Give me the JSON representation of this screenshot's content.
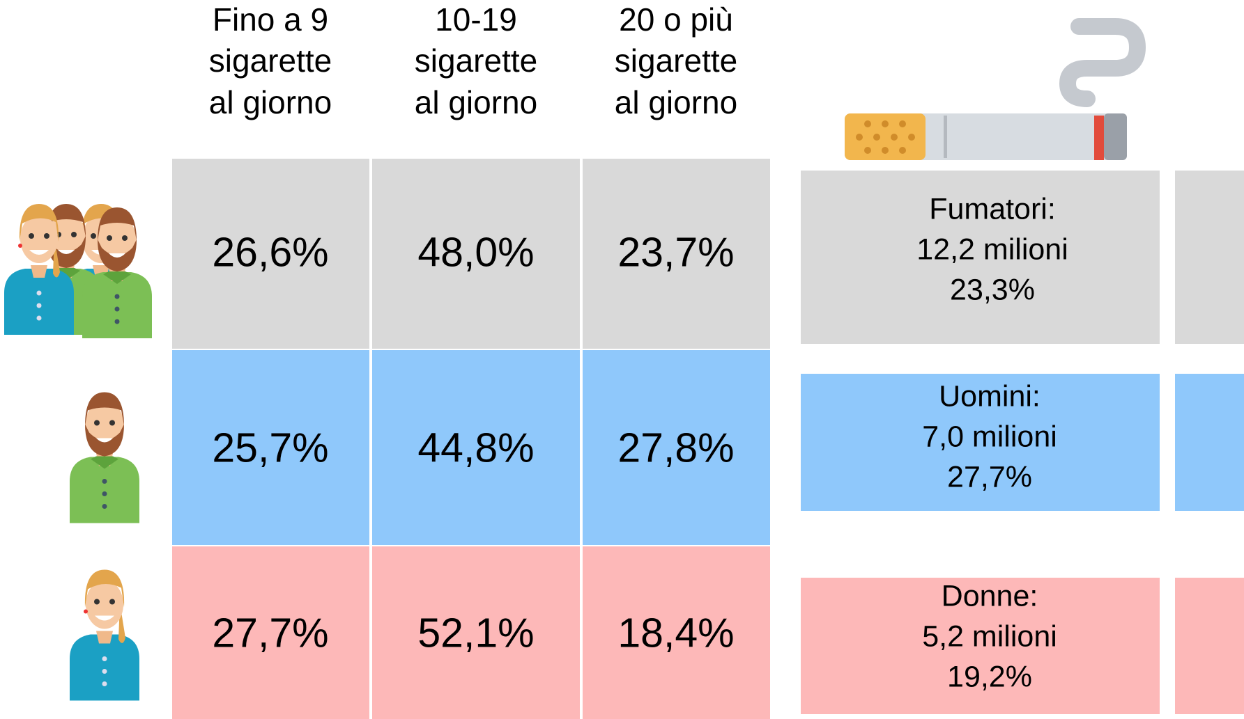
{
  "table": {
    "headers": [
      [
        "Fino a 9",
        "sigarette",
        "al giorno"
      ],
      [
        "10-19",
        "sigarette",
        "al giorno"
      ],
      [
        "20 o più",
        "sigarette",
        "al giorno"
      ]
    ],
    "rows": [
      [
        "26,6%",
        "48,0%",
        "23,7%"
      ],
      [
        "25,7%",
        "44,8%",
        "27,8%"
      ],
      [
        "27,7%",
        "52,1%",
        "18,4%"
      ]
    ]
  },
  "summary": [
    [
      "Fumatori:",
      "12,2 milioni",
      "23,3%"
    ],
    [
      "Uomini:",
      "7,0 milioni",
      "27,7%"
    ],
    [
      "Donne:",
      "5,2 milioni",
      "19,2%"
    ]
  ]
}
